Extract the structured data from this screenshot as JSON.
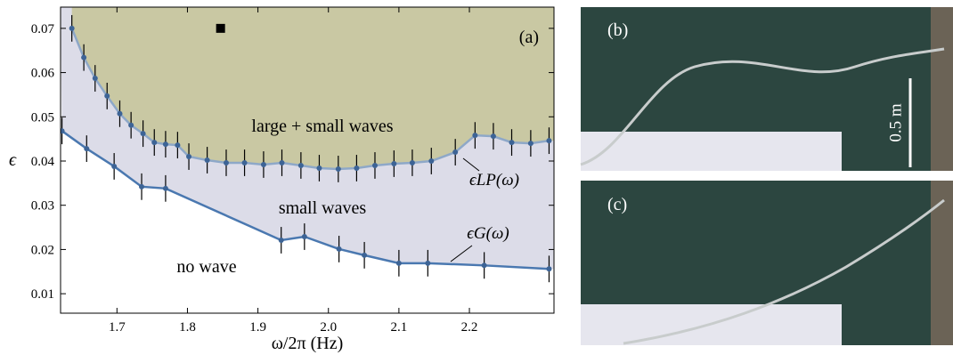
{
  "chart_data": {
    "type": "line",
    "panel_label": "(a)",
    "xlabel": "ω/2π (Hz)",
    "ylabel": "ϵ",
    "xlim": [
      1.62,
      2.32
    ],
    "ylim": [
      0.0056,
      0.0748
    ],
    "xticks": [
      1.7,
      1.8,
      1.9,
      {
        "value": 2,
        "label": "2.0"
      },
      2.1,
      2.2
    ],
    "yticks": [
      0.01,
      0.02,
      0.03,
      0.04,
      0.05,
      0.06,
      0.07
    ],
    "regions": [
      {
        "name": "large + small waves",
        "color": "#c9c8a3"
      },
      {
        "name": "small waves",
        "color": "#dcdce8"
      },
      {
        "name": "no wave",
        "color": "#ffffff"
      }
    ],
    "series": [
      {
        "name": "ϵLP(ω)",
        "color": "#8ea8c8",
        "error": 0.003,
        "x": [
          1.636,
          1.653,
          1.669,
          1.686,
          1.704,
          1.72,
          1.737,
          1.753,
          1.769,
          1.786,
          1.802,
          1.828,
          1.855,
          1.881,
          1.908,
          1.934,
          1.961,
          1.987,
          2.014,
          2.04,
          2.066,
          2.093,
          2.119,
          2.146,
          2.18,
          2.208,
          2.234,
          2.26,
          2.287,
          2.313
        ],
        "values": [
          0.07,
          0.0634,
          0.0587,
          0.0547,
          0.0507,
          0.0481,
          0.0462,
          0.0442,
          0.0438,
          0.0436,
          0.041,
          0.0402,
          0.0396,
          0.0396,
          0.0392,
          0.0396,
          0.039,
          0.0384,
          0.0382,
          0.0384,
          0.039,
          0.0394,
          0.0396,
          0.04,
          0.042,
          0.0458,
          0.0456,
          0.0442,
          0.044,
          0.0446
        ]
      },
      {
        "name": "ϵG(ω)",
        "color": "#4a78b0",
        "error": 0.003,
        "x": [
          1.622,
          1.657,
          1.696,
          1.735,
          1.769,
          1.933,
          1.966,
          2.015,
          2.051,
          2.1,
          2.141,
          2.221,
          2.313
        ],
        "values": [
          0.0468,
          0.0428,
          0.0388,
          0.0342,
          0.0338,
          0.0221,
          0.0229,
          0.0201,
          0.0187,
          0.0169,
          0.0169,
          0.0164,
          0.0156
        ]
      }
    ],
    "marker_point": {
      "x": 1.847,
      "y": 0.07
    }
  },
  "photos": {
    "panels": [
      {
        "label": "(b)"
      },
      {
        "label": "(c)"
      }
    ],
    "scale_label": "0.5 m"
  }
}
